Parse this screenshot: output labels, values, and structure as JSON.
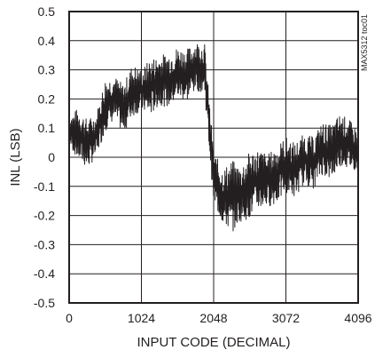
{
  "chart_data": {
    "type": "line",
    "title": "",
    "xlabel": "INPUT CODE (DECIMAL)",
    "ylabel": "INL (LSB)",
    "xlim": [
      0,
      4096
    ],
    "ylim": [
      -0.5,
      0.5
    ],
    "x_ticks": [
      0,
      1024,
      2048,
      3072,
      4096
    ],
    "x_tick_labels": [
      "0",
      "1024",
      "2048",
      "3072",
      "4096"
    ],
    "y_ticks": [
      0.5,
      0.4,
      0.3,
      0.2,
      0.1,
      0,
      -0.1,
      -0.2,
      -0.3,
      -0.4,
      -0.5
    ],
    "y_tick_labels": [
      "0.5",
      "0.4",
      "0.3",
      "0.2",
      "0.1",
      "0",
      "-0.1",
      "-0.2",
      "-0.3",
      "-0.4",
      "-0.5"
    ],
    "grid": true,
    "watermark": "MAX5312 toc01",
    "series": [
      {
        "color": "#231f20",
        "envelope_upper": {
          "x": [
            0,
            128,
            256,
            384,
            512,
            640,
            768,
            896,
            1024,
            1152,
            1280,
            1408,
            1536,
            1664,
            1792,
            1920,
            2048,
            2176,
            2304,
            2432,
            2560,
            2688,
            2816,
            2944,
            3072,
            3200,
            3328,
            3456,
            3584,
            3712,
            3840,
            3968,
            4096
          ],
          "y": [
            0.14,
            0.17,
            0.13,
            0.15,
            0.27,
            0.28,
            0.25,
            0.32,
            0.3,
            0.34,
            0.35,
            0.36,
            0.38,
            0.37,
            0.4,
            0.39,
            0.02,
            -0.04,
            -0.01,
            -0.03,
            0.02,
            0.03,
            0.01,
            0.04,
            0.07,
            0.05,
            0.08,
            0.07,
            0.12,
            0.11,
            0.15,
            0.13,
            0.09
          ]
        },
        "envelope_lower": {
          "x": [
            0,
            128,
            256,
            384,
            512,
            640,
            768,
            896,
            1024,
            1152,
            1280,
            1408,
            1536,
            1664,
            1792,
            1920,
            2048,
            2176,
            2304,
            2432,
            2560,
            2688,
            2816,
            2944,
            3072,
            3200,
            3328,
            3456,
            3584,
            3712,
            3840,
            3968,
            4096
          ],
          "y": [
            0.04,
            -0.01,
            -0.04,
            0.0,
            0.09,
            0.13,
            0.08,
            0.14,
            0.16,
            0.14,
            0.18,
            0.17,
            0.2,
            0.19,
            0.23,
            0.22,
            -0.16,
            -0.23,
            -0.26,
            -0.22,
            -0.21,
            -0.18,
            -0.17,
            -0.16,
            -0.12,
            -0.14,
            -0.09,
            -0.11,
            -0.06,
            -0.08,
            -0.03,
            -0.04,
            -0.05
          ]
        }
      }
    ]
  }
}
